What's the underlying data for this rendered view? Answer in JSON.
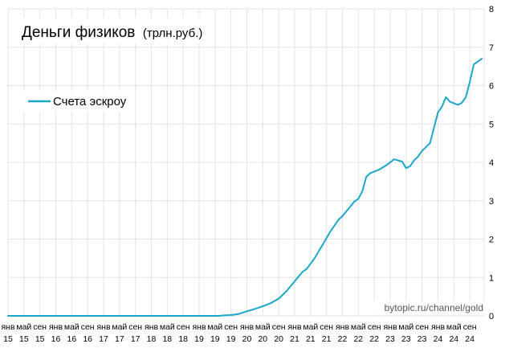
{
  "chart_data": {
    "type": "line",
    "title": "Деньги физиков",
    "subtitle": "(трлн.руб.)",
    "ylim": [
      0,
      8
    ],
    "yticks": [
      "0",
      "1",
      "2",
      "3",
      "4",
      "5",
      "6",
      "7",
      "8"
    ],
    "y_axis_side": "right",
    "grid": true,
    "legend_placement": "top-left",
    "watermark": "bytopic.ru/channel/gold",
    "x_ticks": [
      {
        "month": "янв",
        "year": "15"
      },
      {
        "month": "май",
        "year": "15"
      },
      {
        "month": "сен",
        "year": "15"
      },
      {
        "month": "янв",
        "year": "16"
      },
      {
        "month": "май",
        "year": "16"
      },
      {
        "month": "сен",
        "year": "16"
      },
      {
        "month": "янв",
        "year": "17"
      },
      {
        "month": "май",
        "year": "17"
      },
      {
        "month": "сен",
        "year": "17"
      },
      {
        "month": "янв",
        "year": "18"
      },
      {
        "month": "май",
        "year": "18"
      },
      {
        "month": "сен",
        "year": "18"
      },
      {
        "month": "янв",
        "year": "19"
      },
      {
        "month": "май",
        "year": "19"
      },
      {
        "month": "сен",
        "year": "19"
      },
      {
        "month": "янв",
        "year": "20"
      },
      {
        "month": "май",
        "year": "20"
      },
      {
        "month": "сен",
        "year": "20"
      },
      {
        "month": "янв",
        "year": "21"
      },
      {
        "month": "май",
        "year": "21"
      },
      {
        "month": "сен",
        "year": "21"
      },
      {
        "month": "янв",
        "year": "22"
      },
      {
        "month": "май",
        "year": "22"
      },
      {
        "month": "сен",
        "year": "22"
      },
      {
        "month": "янв",
        "year": "23"
      },
      {
        "month": "май",
        "year": "23"
      },
      {
        "month": "сен",
        "year": "23"
      },
      {
        "month": "янв",
        "year": "24"
      },
      {
        "month": "май",
        "year": "24"
      },
      {
        "month": "сен",
        "year": "24"
      }
    ],
    "series": [
      {
        "name": "Счета эскроу",
        "color": "#1aa7c9",
        "points": [
          [
            "2015-01",
            0
          ],
          [
            "2019-06",
            0
          ],
          [
            "2019-07",
            0.01
          ],
          [
            "2019-09",
            0.02
          ],
          [
            "2019-11",
            0.05
          ],
          [
            "2020-01",
            0.12
          ],
          [
            "2020-03",
            0.18
          ],
          [
            "2020-05",
            0.25
          ],
          [
            "2020-07",
            0.33
          ],
          [
            "2020-09",
            0.45
          ],
          [
            "2020-11",
            0.65
          ],
          [
            "2021-01",
            0.9
          ],
          [
            "2021-03",
            1.15
          ],
          [
            "2021-04",
            1.22
          ],
          [
            "2021-06",
            1.5
          ],
          [
            "2021-08",
            1.85
          ],
          [
            "2021-10",
            2.2
          ],
          [
            "2021-12",
            2.5
          ],
          [
            "2022-01",
            2.6
          ],
          [
            "2022-03",
            2.85
          ],
          [
            "2022-04",
            2.98
          ],
          [
            "2022-05",
            3.05
          ],
          [
            "2022-06",
            3.25
          ],
          [
            "2022-07",
            3.62
          ],
          [
            "2022-08",
            3.72
          ],
          [
            "2022-10",
            3.8
          ],
          [
            "2022-12",
            3.92
          ],
          [
            "2023-02",
            4.08
          ],
          [
            "2023-04",
            4.02
          ],
          [
            "2023-05",
            3.85
          ],
          [
            "2023-06",
            3.9
          ],
          [
            "2023-07",
            4.05
          ],
          [
            "2023-08",
            4.15
          ],
          [
            "2023-09",
            4.3
          ],
          [
            "2023-11",
            4.5
          ],
          [
            "2023-12",
            4.9
          ],
          [
            "2024-01",
            5.3
          ],
          [
            "2024-02",
            5.45
          ],
          [
            "2024-03",
            5.7
          ],
          [
            "2024-04",
            5.58
          ],
          [
            "2024-06",
            5.5
          ],
          [
            "2024-07",
            5.55
          ],
          [
            "2024-08",
            5.7
          ],
          [
            "2024-09",
            6.1
          ],
          [
            "2024-10",
            6.55
          ],
          [
            "2024-12",
            6.7
          ]
        ]
      }
    ]
  }
}
